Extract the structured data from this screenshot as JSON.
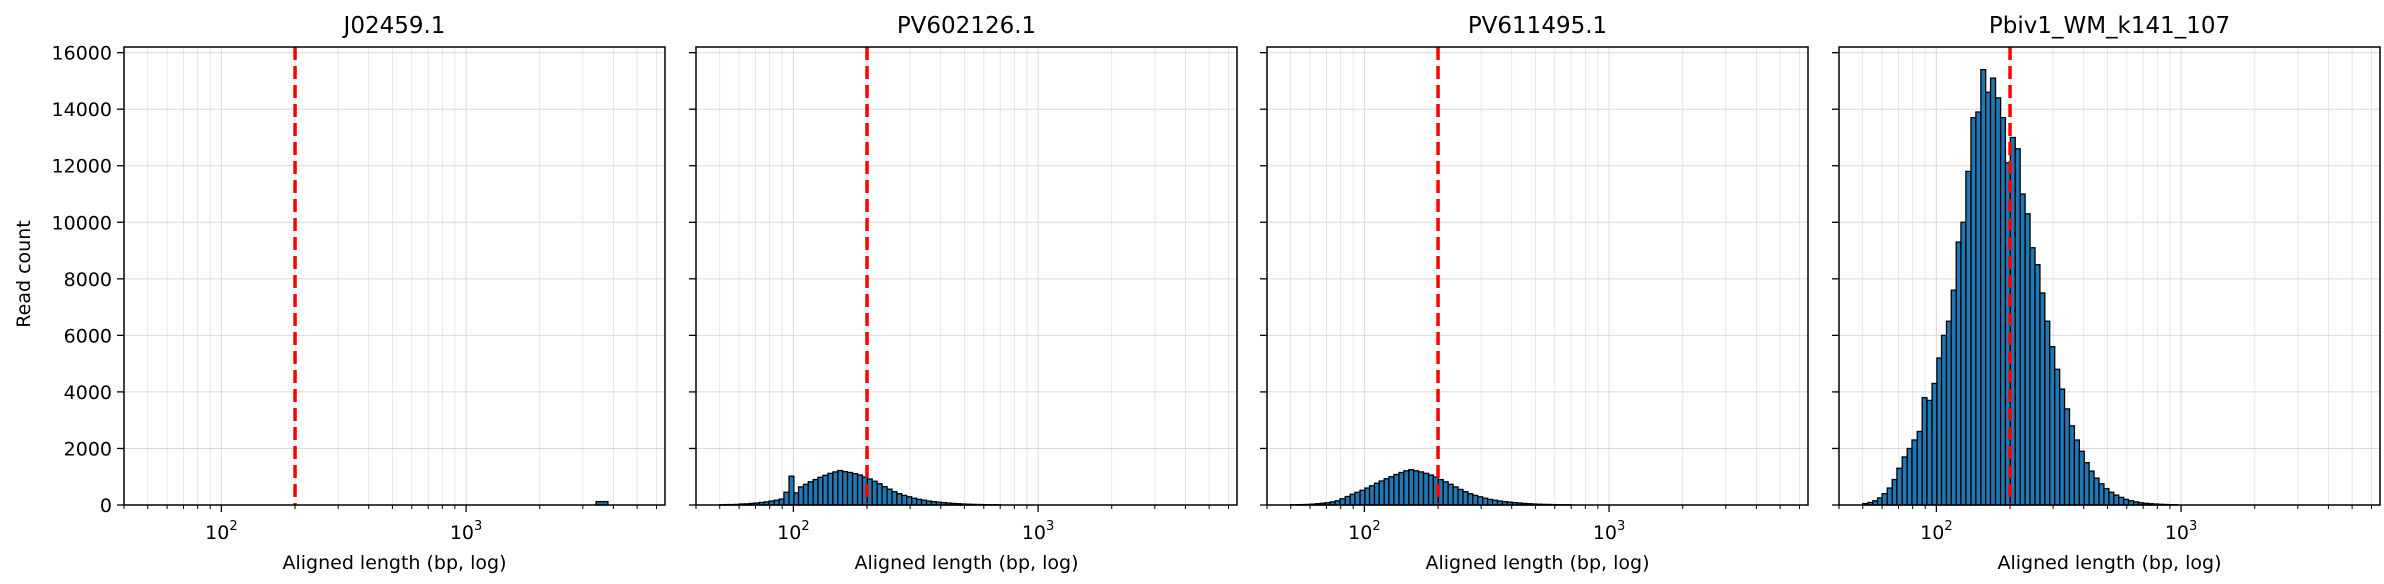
{
  "figure": {
    "ylabel": "Read count",
    "xlabel": "Aligned length (bp, log)"
  },
  "chart_data": [
    {
      "type": "histogram",
      "title": "J02459.1",
      "xlabel": "Aligned length (bp, log)",
      "ylabel": "Read count",
      "xscale": "log",
      "xlim": [
        40,
        6500
      ],
      "ylim": [
        0,
        16200
      ],
      "xticks": [
        100,
        1000
      ],
      "yticks": [
        0,
        2000,
        4000,
        6000,
        8000,
        10000,
        12000,
        14000,
        16000
      ],
      "grid": true,
      "bar_color": "#1f77b4",
      "threshold": 200,
      "threshold_color": "#ff0000",
      "bins": [
        [
          3400,
          3800,
          120
        ]
      ]
    },
    {
      "type": "histogram",
      "title": "PV602126.1",
      "xlabel": "Aligned length (bp, log)",
      "xscale": "log",
      "xlim": [
        40,
        6500
      ],
      "ylim": [
        0,
        16200
      ],
      "xticks": [
        100,
        1000
      ],
      "grid": true,
      "bar_color": "#1f77b4",
      "threshold": 200,
      "threshold_color": "#ff0000",
      "bins": [
        [
          50,
          52.5,
          10
        ],
        [
          52.5,
          55,
          15
        ],
        [
          55,
          57.5,
          15
        ],
        [
          57.5,
          60,
          20
        ],
        [
          60,
          63,
          35
        ],
        [
          63,
          66,
          40
        ],
        [
          66,
          69,
          55
        ],
        [
          69,
          72.5,
          70
        ],
        [
          72.5,
          76,
          90
        ],
        [
          76,
          79.5,
          110
        ],
        [
          79.5,
          83.5,
          140
        ],
        [
          83.5,
          87.5,
          170
        ],
        [
          87.5,
          91.5,
          210
        ],
        [
          91.5,
          96,
          450
        ],
        [
          96,
          100.5,
          1020
        ],
        [
          100.5,
          105,
          430
        ],
        [
          105,
          110,
          640
        ],
        [
          110,
          115,
          730
        ],
        [
          115,
          120.5,
          820
        ],
        [
          120.5,
          126,
          900
        ],
        [
          126,
          132,
          980
        ],
        [
          132,
          138.5,
          1050
        ],
        [
          138.5,
          145,
          1120
        ],
        [
          145,
          152,
          1170
        ],
        [
          152,
          159,
          1220
        ],
        [
          159,
          166.5,
          1180
        ],
        [
          166.5,
          174.5,
          1150
        ],
        [
          174.5,
          183,
          1110
        ],
        [
          183,
          191.5,
          1060
        ],
        [
          191.5,
          200.5,
          990
        ],
        [
          200.5,
          210,
          920
        ],
        [
          210,
          220,
          840
        ],
        [
          220,
          230.5,
          750
        ],
        [
          230.5,
          241.5,
          650
        ],
        [
          241.5,
          253,
          560
        ],
        [
          253,
          265,
          470
        ],
        [
          265,
          277.5,
          400
        ],
        [
          277.5,
          290.5,
          340
        ],
        [
          290.5,
          304.5,
          290
        ],
        [
          304.5,
          319,
          240
        ],
        [
          319,
          334,
          200
        ],
        [
          334,
          350,
          170
        ],
        [
          350,
          366.5,
          140
        ],
        [
          366.5,
          384,
          120
        ],
        [
          384,
          402,
          100
        ],
        [
          402,
          421,
          85
        ],
        [
          421,
          441,
          70
        ],
        [
          441,
          462,
          55
        ],
        [
          462,
          484,
          45
        ],
        [
          484,
          507,
          35
        ],
        [
          507,
          531,
          28
        ],
        [
          531,
          556,
          22
        ],
        [
          556,
          583,
          18
        ],
        [
          583,
          610,
          14
        ],
        [
          610,
          640,
          10
        ],
        [
          640,
          670,
          8
        ],
        [
          670,
          700,
          6
        ]
      ]
    },
    {
      "type": "histogram",
      "title": "PV611495.1",
      "xlabel": "Aligned length (bp, log)",
      "xscale": "log",
      "xlim": [
        40,
        6500
      ],
      "ylim": [
        0,
        16200
      ],
      "xticks": [
        100,
        1000
      ],
      "grid": true,
      "bar_color": "#1f77b4",
      "threshold": 200,
      "threshold_color": "#ff0000",
      "bins": [
        [
          50,
          52.5,
          10
        ],
        [
          52.5,
          55,
          12
        ],
        [
          55,
          57.5,
          15
        ],
        [
          57.5,
          60,
          20
        ],
        [
          60,
          63,
          30
        ],
        [
          63,
          66,
          45
        ],
        [
          66,
          69,
          60
        ],
        [
          69,
          72.5,
          80
        ],
        [
          72.5,
          76,
          110
        ],
        [
          76,
          79.5,
          150
        ],
        [
          79.5,
          83.5,
          220
        ],
        [
          83.5,
          87.5,
          300
        ],
        [
          87.5,
          91.5,
          380
        ],
        [
          91.5,
          96,
          450
        ],
        [
          96,
          100.5,
          520
        ],
        [
          100.5,
          105,
          600
        ],
        [
          105,
          110,
          680
        ],
        [
          110,
          115,
          770
        ],
        [
          115,
          120.5,
          850
        ],
        [
          120.5,
          126,
          930
        ],
        [
          126,
          132,
          1000
        ],
        [
          132,
          138.5,
          1080
        ],
        [
          138.5,
          145,
          1150
        ],
        [
          145,
          152,
          1210
        ],
        [
          152,
          159,
          1250
        ],
        [
          159,
          166.5,
          1210
        ],
        [
          166.5,
          174.5,
          1170
        ],
        [
          174.5,
          183,
          1120
        ],
        [
          183,
          191.5,
          1060
        ],
        [
          191.5,
          200.5,
          990
        ],
        [
          200.5,
          210,
          900
        ],
        [
          210,
          220,
          820
        ],
        [
          220,
          230.5,
          730
        ],
        [
          230.5,
          241.5,
          640
        ],
        [
          241.5,
          253,
          550
        ],
        [
          253,
          265,
          470
        ],
        [
          265,
          277.5,
          400
        ],
        [
          277.5,
          290.5,
          340
        ],
        [
          290.5,
          304.5,
          290
        ],
        [
          304.5,
          319,
          240
        ],
        [
          319,
          334,
          200
        ],
        [
          334,
          350,
          170
        ],
        [
          350,
          366.5,
          140
        ],
        [
          366.5,
          384,
          120
        ],
        [
          384,
          402,
          100
        ],
        [
          402,
          421,
          85
        ],
        [
          421,
          441,
          70
        ],
        [
          441,
          462,
          55
        ],
        [
          462,
          484,
          45
        ],
        [
          484,
          507,
          35
        ],
        [
          507,
          531,
          28
        ],
        [
          531,
          556,
          22
        ],
        [
          556,
          583,
          18
        ],
        [
          583,
          610,
          14
        ],
        [
          610,
          640,
          10
        ],
        [
          640,
          670,
          8
        ],
        [
          670,
          700,
          6
        ]
      ]
    },
    {
      "type": "histogram",
      "title": "Pbiv1_WM_k141_107",
      "xlabel": "Aligned length (bp, log)",
      "xscale": "log",
      "xlim": [
        40,
        6500
      ],
      "ylim": [
        0,
        16200
      ],
      "xticks": [
        100,
        1000
      ],
      "grid": true,
      "bar_color": "#1f77b4",
      "threshold": 200,
      "threshold_color": "#ff0000",
      "bins": [
        [
          50,
          52.5,
          50
        ],
        [
          52.5,
          55,
          90
        ],
        [
          55,
          57.5,
          150
        ],
        [
          57.5,
          60,
          250
        ],
        [
          60,
          63,
          400
        ],
        [
          63,
          66,
          600
        ],
        [
          66,
          69,
          900
        ],
        [
          69,
          72.5,
          1300
        ],
        [
          72.5,
          76,
          1700
        ],
        [
          76,
          79.5,
          2000
        ],
        [
          79.5,
          83.5,
          2300
        ],
        [
          83.5,
          87.5,
          2600
        ],
        [
          87.5,
          91.5,
          3800
        ],
        [
          91.5,
          96,
          3700
        ],
        [
          96,
          100.5,
          4300
        ],
        [
          100.5,
          105,
          5200
        ],
        [
          105,
          110,
          6000
        ],
        [
          110,
          115,
          6500
        ],
        [
          115,
          120.5,
          7600
        ],
        [
          120.5,
          126,
          9300
        ],
        [
          126,
          132,
          10000
        ],
        [
          132,
          138.5,
          11800
        ],
        [
          138.5,
          145,
          13700
        ],
        [
          145,
          152,
          13900
        ],
        [
          152,
          159,
          15400
        ],
        [
          159,
          166.5,
          14600
        ],
        [
          166.5,
          174.5,
          15100
        ],
        [
          174.5,
          183,
          14400
        ],
        [
          183,
          191.5,
          13700
        ],
        [
          191.5,
          200.5,
          12100
        ],
        [
          200.5,
          210,
          13000
        ],
        [
          210,
          220,
          12600
        ],
        [
          220,
          230.5,
          11000
        ],
        [
          230.5,
          241.5,
          10300
        ],
        [
          241.5,
          253,
          9100
        ],
        [
          253,
          265,
          8500
        ],
        [
          265,
          277.5,
          7500
        ],
        [
          277.5,
          290.5,
          6500
        ],
        [
          290.5,
          304.5,
          5600
        ],
        [
          304.5,
          319,
          4800
        ],
        [
          319,
          334,
          4100
        ],
        [
          334,
          350,
          3400
        ],
        [
          350,
          366.5,
          2800
        ],
        [
          366.5,
          384,
          2300
        ],
        [
          384,
          402,
          1900
        ],
        [
          402,
          421,
          1500
        ],
        [
          421,
          441,
          1200
        ],
        [
          441,
          462,
          950
        ],
        [
          462,
          484,
          750
        ],
        [
          484,
          507,
          580
        ],
        [
          507,
          531,
          450
        ],
        [
          531,
          556,
          350
        ],
        [
          556,
          583,
          270
        ],
        [
          583,
          610,
          200
        ],
        [
          610,
          640,
          150
        ],
        [
          640,
          670,
          110
        ],
        [
          670,
          700,
          80
        ],
        [
          700,
          735,
          60
        ],
        [
          735,
          770,
          45
        ],
        [
          770,
          808,
          35
        ],
        [
          808,
          847,
          25
        ],
        [
          847,
          888,
          18
        ],
        [
          888,
          930,
          12
        ],
        [
          930,
          975,
          8
        ]
      ]
    }
  ]
}
